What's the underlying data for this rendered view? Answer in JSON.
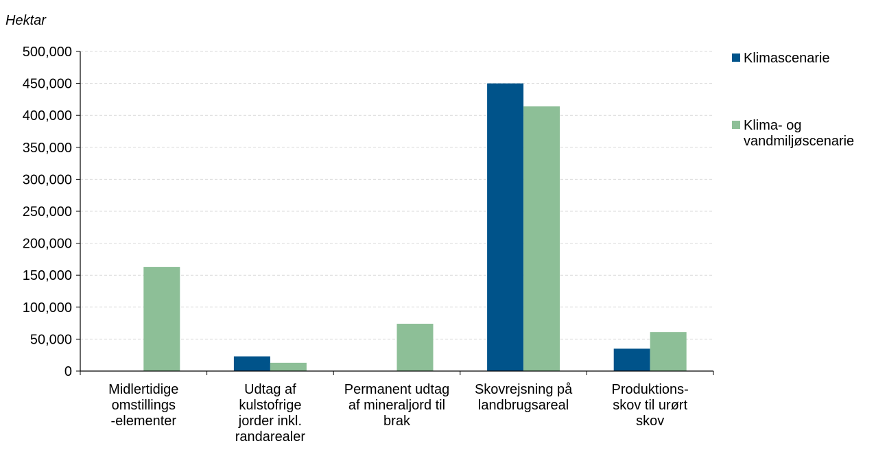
{
  "chart_data": {
    "type": "bar",
    "unit_label": "Hektar",
    "categories": [
      [
        "Midlertidige",
        "omstillings",
        "-elementer"
      ],
      [
        "Udtag af",
        "kulstofrige",
        "jorder inkl.",
        "randarealer"
      ],
      [
        "Permanent udtag",
        "af mineraljord til",
        "brak"
      ],
      [
        "Skovrejsning på",
        "landbrugsareal"
      ],
      [
        "Produktions-",
        "skov til urørt",
        "skov"
      ]
    ],
    "series": [
      {
        "name": "Klimascenarie",
        "color": "#00538A",
        "values": [
          0,
          23000,
          0,
          450000,
          35000
        ]
      },
      {
        "name": "Klima- og vandmiljøscenarie",
        "legend_lines": [
          "Klima- og",
          "vandmiljøscenarie"
        ],
        "color": "#8DBF97",
        "values": [
          163000,
          13000,
          74000,
          414000,
          61000
        ]
      }
    ],
    "ylim": [
      0,
      500000
    ],
    "yticks": [
      0,
      50000,
      100000,
      150000,
      200000,
      250000,
      300000,
      350000,
      400000,
      450000,
      500000
    ],
    "ytick_labels": [
      "0",
      "50,000",
      "100,000",
      "150,000",
      "200,000",
      "250,000",
      "300,000",
      "350,000",
      "400,000",
      "450,000",
      "500,000"
    ],
    "grid": true,
    "legend_position": "right"
  }
}
